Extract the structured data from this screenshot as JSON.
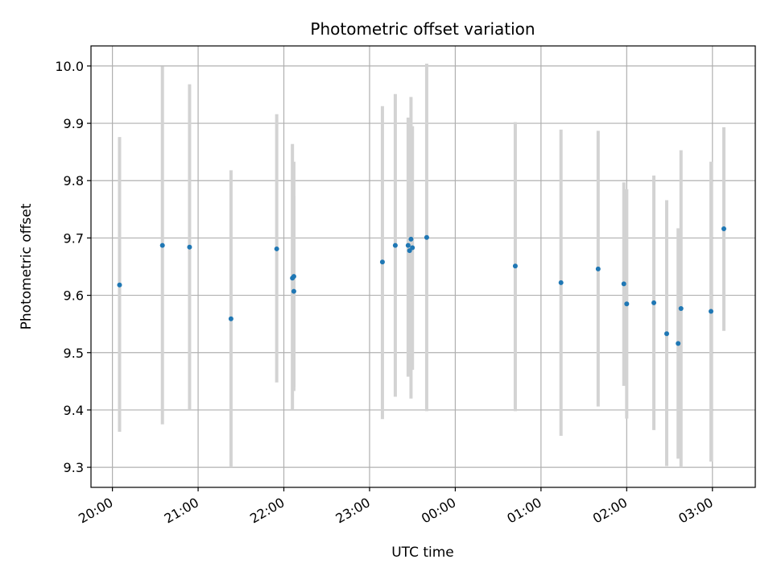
{
  "chart_data": {
    "type": "scatter",
    "title": "Photometric offset variation",
    "xlabel": "UTC time",
    "ylabel": "Photometric offset",
    "xlim": [
      "2023-01-01T19:45",
      "2023-01-02T03:30"
    ],
    "ylim": [
      9.265,
      10.035
    ],
    "x_ticks": [
      {
        "t": "2023-01-01T20:00",
        "label": "20:00"
      },
      {
        "t": "2023-01-01T21:00",
        "label": "21:00"
      },
      {
        "t": "2023-01-01T22:00",
        "label": "22:00"
      },
      {
        "t": "2023-01-01T23:00",
        "label": "23:00"
      },
      {
        "t": "2023-01-02T00:00",
        "label": "00:00"
      },
      {
        "t": "2023-01-02T01:00",
        "label": "01:00"
      },
      {
        "t": "2023-01-02T02:00",
        "label": "02:00"
      },
      {
        "t": "2023-01-02T03:00",
        "label": "03:00"
      }
    ],
    "y_ticks": [
      9.3,
      9.4,
      9.5,
      9.6,
      9.7,
      9.8,
      9.9,
      10.0
    ],
    "grid": true,
    "point_color": "#1f77b4",
    "errorbar_color": "#d3d3d3",
    "points": [
      {
        "t": "2023-01-01T20:05",
        "y": 9.618,
        "lo": 9.362,
        "hi": 9.876
      },
      {
        "t": "2023-01-01T20:35",
        "y": 9.687,
        "lo": 9.375,
        "hi": 9.999
      },
      {
        "t": "2023-01-01T20:54",
        "y": 9.684,
        "lo": 9.4,
        "hi": 9.968
      },
      {
        "t": "2023-01-01T21:23",
        "y": 9.559,
        "lo": 9.3,
        "hi": 9.818
      },
      {
        "t": "2023-01-01T21:55",
        "y": 9.681,
        "lo": 9.448,
        "hi": 9.916
      },
      {
        "t": "2023-01-01T22:06",
        "y": 9.63,
        "lo": 9.4,
        "hi": 9.864
      },
      {
        "t": "2023-01-01T22:07",
        "y": 9.633,
        "lo": 9.433,
        "hi": 9.833
      },
      {
        "t": "2023-01-01T22:07",
        "y": 9.607,
        "lo": 9.44,
        "hi": 9.774
      },
      {
        "t": "2023-01-01T23:09",
        "y": 9.658,
        "lo": 9.384,
        "hi": 9.93
      },
      {
        "t": "2023-01-01T23:18",
        "y": 9.687,
        "lo": 9.423,
        "hi": 9.951
      },
      {
        "t": "2023-01-01T23:27",
        "y": 9.687,
        "lo": 9.458,
        "hi": 9.91
      },
      {
        "t": "2023-01-01T23:28",
        "y": 9.678,
        "lo": 9.47,
        "hi": 9.885
      },
      {
        "t": "2023-01-01T23:29",
        "y": 9.698,
        "lo": 9.42,
        "hi": 9.946
      },
      {
        "t": "2023-01-01T23:30",
        "y": 9.683,
        "lo": 9.47,
        "hi": 9.895
      },
      {
        "t": "2023-01-01T23:40",
        "y": 9.701,
        "lo": 9.398,
        "hi": 10.004
      },
      {
        "t": "2023-01-02T00:42",
        "y": 9.651,
        "lo": 9.398,
        "hi": 9.902
      },
      {
        "t": "2023-01-02T01:14",
        "y": 9.622,
        "lo": 9.355,
        "hi": 9.889
      },
      {
        "t": "2023-01-02T01:40",
        "y": 9.646,
        "lo": 9.406,
        "hi": 9.887
      },
      {
        "t": "2023-01-02T01:58",
        "y": 9.62,
        "lo": 9.442,
        "hi": 9.797
      },
      {
        "t": "2023-01-02T02:00",
        "y": 9.585,
        "lo": 9.385,
        "hi": 9.785
      },
      {
        "t": "2023-01-02T02:19",
        "y": 9.587,
        "lo": 9.365,
        "hi": 9.809
      },
      {
        "t": "2023-01-02T02:28",
        "y": 9.533,
        "lo": 9.302,
        "hi": 9.766
      },
      {
        "t": "2023-01-02T02:36",
        "y": 9.516,
        "lo": 9.315,
        "hi": 9.717
      },
      {
        "t": "2023-01-02T02:38",
        "y": 9.577,
        "lo": 9.3,
        "hi": 9.853
      },
      {
        "t": "2023-01-02T02:59",
        "y": 9.572,
        "lo": 9.31,
        "hi": 9.833
      },
      {
        "t": "2023-01-02T03:08",
        "y": 9.716,
        "lo": 9.538,
        "hi": 9.893
      }
    ]
  }
}
